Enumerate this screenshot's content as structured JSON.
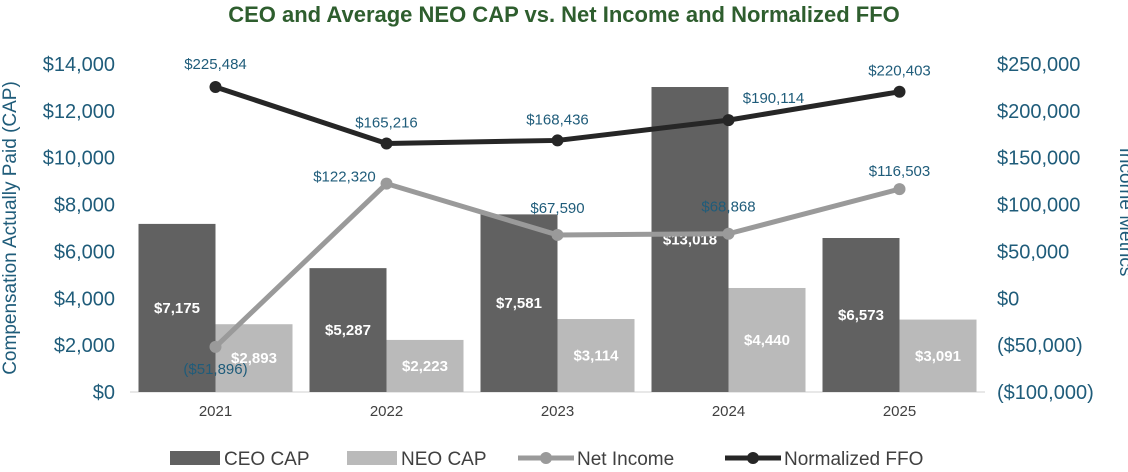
{
  "chart_data": {
    "type": "bar",
    "title": "CEO and Average NEO CAP vs. Net Income and Normalized FFO",
    "categories": [
      "2021",
      "2022",
      "2023",
      "2024",
      "2025"
    ],
    "ylabel": "Compensation Actually Paid (CAP)",
    "y2label": "Income Metrics",
    "ylim": [
      0,
      14000
    ],
    "y2lim": [
      -100000,
      250000
    ],
    "yticks": [
      "$0",
      "$2,000",
      "$4,000",
      "$6,000",
      "$8,000",
      "$10,000",
      "$12,000",
      "$14,000"
    ],
    "y2ticks": [
      "($100,000)",
      "($50,000)",
      "$0",
      "$50,000",
      "$100,000",
      "$150,000",
      "$200,000",
      "$250,000"
    ],
    "series": [
      {
        "name": "CEO CAP",
        "type": "bar",
        "axis": "left",
        "color": "#616161",
        "values": [
          7175,
          5287,
          7581,
          13018,
          6573
        ],
        "labels": [
          "$7,175",
          "$5,287",
          "$7,581",
          "$13,018",
          "$6,573"
        ]
      },
      {
        "name": "NEO CAP",
        "type": "bar",
        "axis": "left",
        "color": "#bababa",
        "values": [
          2893,
          2223,
          3114,
          4440,
          3091
        ],
        "labels": [
          "$2,893",
          "$2,223",
          "$3,114",
          "$4,440",
          "$3,091"
        ]
      },
      {
        "name": "Net Income",
        "type": "line",
        "axis": "right",
        "color": "#9a9a9a",
        "values": [
          -51896,
          122320,
          67590,
          68868,
          116503
        ],
        "labels": [
          "($51,896)",
          "$122,320",
          "$67,590",
          "$68,868",
          "$116,503"
        ]
      },
      {
        "name": "Normalized FFO",
        "type": "line",
        "axis": "right",
        "color": "#262626",
        "values": [
          225484,
          165216,
          168436,
          190114,
          220403
        ],
        "labels": [
          "$225,484",
          "$165,216",
          "$168,436",
          "$190,114",
          "$220,403"
        ]
      }
    ],
    "legend": "bottom"
  }
}
